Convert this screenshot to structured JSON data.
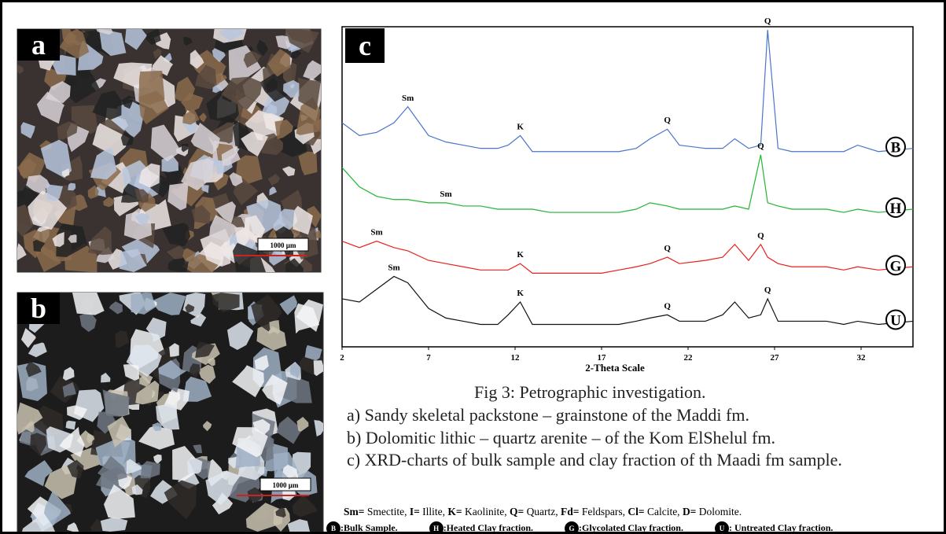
{
  "panels": [
    {
      "label": "a",
      "scale_bar": "1000 µm"
    },
    {
      "label": "b",
      "scale_bar": "1000 µm"
    }
  ],
  "chart_data": {
    "type": "line",
    "label": "c",
    "xlabel": "2-Theta Scale",
    "x": [
      2,
      3,
      4,
      5,
      5.8,
      7,
      8,
      9,
      10,
      11,
      11.6,
      12.3,
      13,
      14,
      15,
      16,
      17,
      18,
      19,
      19.8,
      20.8,
      21.5,
      23,
      24,
      24.7,
      25.5,
      26.2,
      26.6,
      27.2,
      28,
      29,
      30,
      31,
      31.8,
      33,
      35
    ],
    "xlim": [
      2,
      35
    ],
    "xticks": [
      2,
      7,
      12,
      17,
      22,
      27,
      32
    ],
    "ylim": [
      0,
      100
    ],
    "series": [
      {
        "name": "B",
        "color": "#4a74c9",
        "values": [
          70,
          66,
          67,
          70,
          75,
          66,
          64,
          63,
          62,
          62,
          63,
          66,
          61,
          61,
          61,
          61,
          61,
          61,
          62,
          65,
          68,
          63,
          62,
          62,
          65,
          62,
          63,
          99,
          62,
          61,
          61,
          61,
          61,
          63,
          61,
          62
        ],
        "peaks": [
          {
            "label": "Sm",
            "x": 5.8
          },
          {
            "label": "K",
            "x": 12.3
          },
          {
            "label": "Q",
            "x": 20.8
          },
          {
            "label": "Q",
            "x": 26.6
          }
        ]
      },
      {
        "name": "H",
        "color": "#22b530",
        "values": [
          56,
          50,
          47,
          46,
          46,
          45,
          45,
          44,
          44,
          43,
          43,
          43,
          43,
          42,
          42,
          42,
          42,
          42,
          43,
          45,
          44,
          43,
          43,
          43,
          44,
          43,
          60,
          45,
          44,
          43,
          43,
          43,
          42,
          43,
          42,
          43
        ],
        "peaks": [
          {
            "label": "Sm",
            "x": 8
          },
          {
            "label": "Q",
            "x": 26.2
          }
        ]
      },
      {
        "name": "G",
        "color": "#e8211e",
        "values": [
          33,
          31,
          33,
          31,
          30,
          27,
          26,
          25,
          24,
          24,
          24,
          26,
          23,
          23,
          23,
          23,
          23,
          24,
          25,
          26,
          28,
          26,
          27,
          28,
          32,
          27,
          32,
          28,
          26,
          25,
          25,
          25,
          24,
          25,
          24,
          25
        ],
        "peaks": [
          {
            "label": "Sm",
            "x": 4
          },
          {
            "label": "K",
            "x": 12.3
          },
          {
            "label": "Q",
            "x": 20.8
          },
          {
            "label": "Q",
            "x": 26.2
          }
        ]
      },
      {
        "name": "U",
        "color": "#111111",
        "values": [
          15,
          14,
          18,
          22,
          20,
          12,
          9,
          8,
          7,
          7,
          10,
          14,
          7,
          7,
          7,
          7,
          7,
          7,
          8,
          9,
          10,
          8,
          8,
          10,
          14,
          9,
          10,
          15,
          8,
          8,
          8,
          8,
          7,
          8,
          7,
          8
        ],
        "peaks": [
          {
            "label": "Sm",
            "x": 5
          },
          {
            "label": "K",
            "x": 12.3
          },
          {
            "label": "Q",
            "x": 20.8
          },
          {
            "label": "Q",
            "x": 26.6
          }
        ]
      }
    ]
  },
  "caption": {
    "title": "Fig 3: Petrographic investigation.",
    "lines": [
      "a) Sandy skeletal packstone – grainstone of the Maddi fm.",
      "b) Dolomitic lithic – quartz arenite – of the Kom ElShelul fm.",
      "c) XRD-charts of bulk sample and clay fraction of th Maadi fm sample."
    ]
  },
  "abbreviations": [
    {
      "abbr": "Sm=",
      "name": " Smectite,"
    },
    {
      "abbr": "I=",
      "name": " Illite,"
    },
    {
      "abbr": "K=",
      "name": " Kaolinite,"
    },
    {
      "abbr": "Q=",
      "name": " Quartz,"
    },
    {
      "abbr": "Fd=",
      "name": " Feldspars,"
    },
    {
      "abbr": "Cl=",
      "name": " Calcite,"
    },
    {
      "abbr": "D=",
      "name": " Dolomite."
    }
  ],
  "sample_key": [
    {
      "symbol": "B",
      "text": ":Bulk Sample."
    },
    {
      "symbol": "H",
      "text": ":Heated Clay fraction."
    },
    {
      "symbol": "G",
      "text": ":Glycolated Clay fraction."
    },
    {
      "symbol": "U",
      "text": ": Untreated Clay fraction."
    }
  ]
}
